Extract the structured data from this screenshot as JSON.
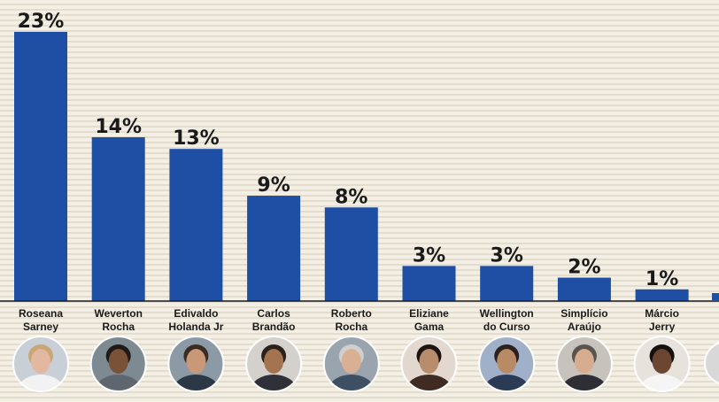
{
  "chart_data": {
    "type": "bar",
    "categories": [
      [
        "Roseana",
        "Sarney"
      ],
      [
        "Weverton",
        "Rocha"
      ],
      [
        "Edivaldo",
        "Holanda Jr"
      ],
      [
        "Carlos",
        "Brandão"
      ],
      [
        "Roberto",
        "Rocha"
      ],
      [
        "Eliziane",
        "Gama"
      ],
      [
        "Wellington",
        "do Curso"
      ],
      [
        "Simplício",
        "Araújo"
      ],
      [
        "Márcio",
        "Jerry"
      ]
    ],
    "values": [
      23,
      14,
      13,
      9,
      8,
      3,
      3,
      2,
      1
    ],
    "value_labels": [
      "23%",
      "14%",
      "13%",
      "9%",
      "8%",
      "3%",
      "3%",
      "2%",
      "1%"
    ],
    "unit": "%",
    "ylim": [
      0,
      23
    ],
    "bar_color": "#1f4fa5",
    "grid": false,
    "legend": "none",
    "has_photos": true
  }
}
